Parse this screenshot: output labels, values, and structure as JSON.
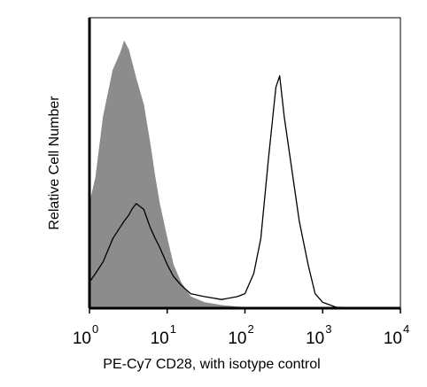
{
  "chart_data": {
    "type": "histogram",
    "xlabel": "PE-Cy7 CD28, with isotype control",
    "ylabel": "Relative Cell Number",
    "xscale": "log",
    "xlim": [
      1,
      10000
    ],
    "xticks": [
      {
        "value": 1,
        "label": "10",
        "exponent": "0"
      },
      {
        "value": 10,
        "label": "10",
        "exponent": "1"
      },
      {
        "value": 100,
        "label": "10",
        "exponent": "2"
      },
      {
        "value": 1000,
        "label": "10",
        "exponent": "3"
      },
      {
        "value": 10000,
        "label": "10",
        "exponent": "4"
      }
    ],
    "ylim": [
      0,
      100
    ],
    "x": [
      1,
      1.2,
      1.5,
      2,
      2.5,
      2.8,
      3.2,
      3.5,
      4,
      5,
      6,
      7,
      8,
      10,
      12,
      15,
      20,
      30,
      50,
      80,
      100,
      130,
      160,
      200,
      250,
      280,
      320,
      400,
      500,
      650,
      800,
      1000,
      1500,
      10000
    ],
    "series": [
      {
        "color": "#8c8c8c",
        "filled": true,
        "values": [
          36,
          45,
          66,
          82,
          88,
          92,
          89,
          85,
          79,
          70,
          57,
          45,
          36,
          24,
          15,
          9,
          4,
          2,
          1,
          0.5,
          0.3,
          0,
          0,
          0,
          0,
          0,
          0,
          0,
          0,
          0,
          0,
          0,
          0,
          0
        ]
      },
      {
        "color": "#000000",
        "filled": false,
        "values": [
          9,
          12,
          16,
          24,
          28,
          30,
          32,
          34,
          36,
          34,
          28,
          24,
          21,
          15,
          11,
          8,
          5,
          4,
          3,
          4,
          5,
          12,
          24,
          51,
          76,
          80,
          66,
          48,
          30,
          15,
          5,
          2,
          0.3,
          0
        ]
      }
    ]
  }
}
